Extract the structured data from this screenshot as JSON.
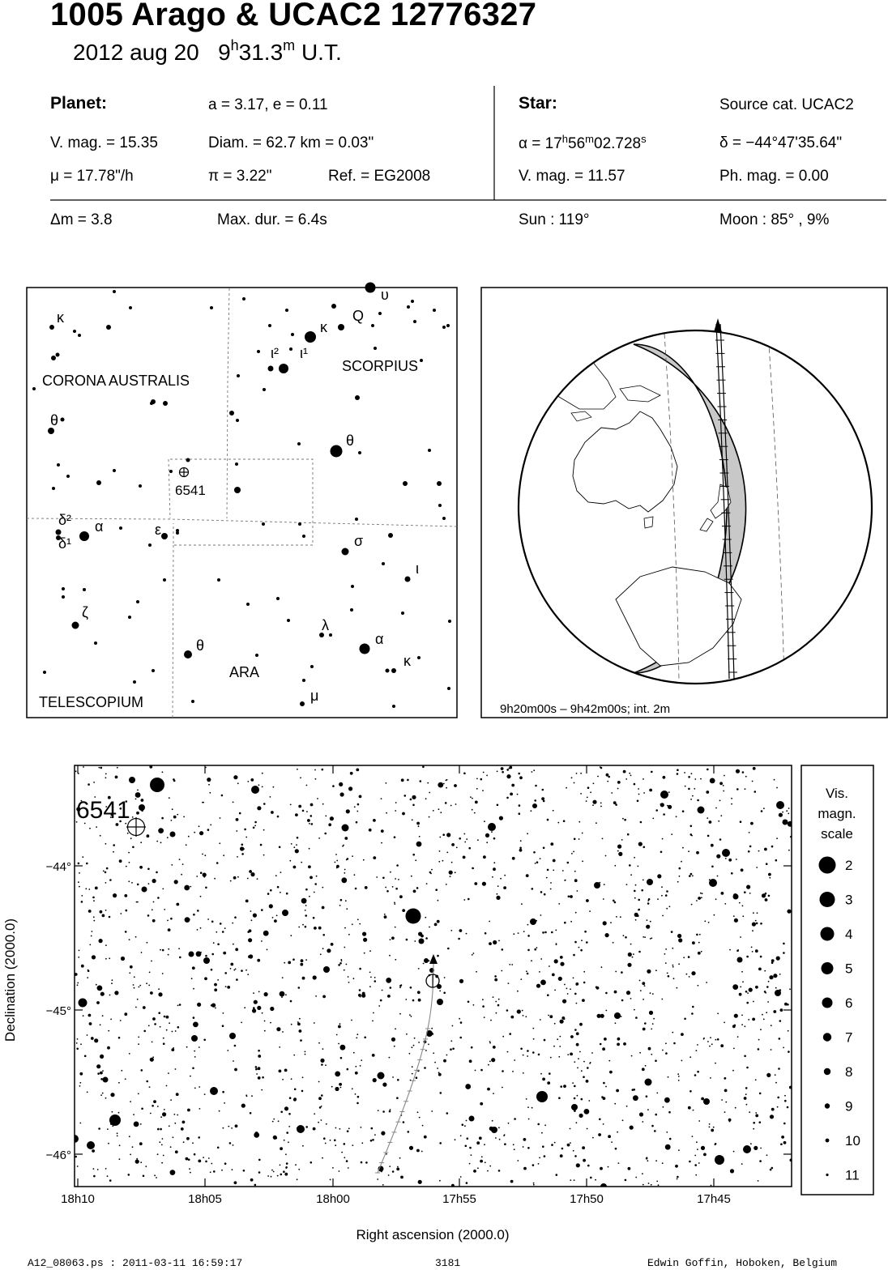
{
  "title": "1005 Arago  &  UCAC2 12776327",
  "subtitle": {
    "date": "2012 aug 20",
    "hour": "9",
    "hour_unit": "h",
    "minute": "31.3",
    "minute_unit": "m",
    "scale": "U.T."
  },
  "planet": {
    "header": "Planet:",
    "orbit": "a = 3.17, e = 0.11",
    "vmag": "V. mag. = 15.35",
    "diam": "Diam. = 62.7 km = 0.03\"",
    "mu": "μ =  17.78\"/h",
    "pi": "π =  3.22\"",
    "ref": "Ref. = EG2008"
  },
  "star": {
    "header": "Star:",
    "source": "Source cat.  UCAC2",
    "ra_prefix": "α = 17",
    "ra_h": "h",
    "ra_mid": "56",
    "ra_m": "m",
    "ra_sec": "02.728",
    "ra_s": "s",
    "dec": "δ = −44°47'35.64\"",
    "vmag": "V. mag. = 11.57",
    "phmag": "Ph. mag. =  0.00"
  },
  "event": {
    "dm": "Δm = 3.8",
    "maxdur": "Max. dur. = 6.4s",
    "sun": "Sun : 119°",
    "moon": "Moon :  85° ,  9%"
  },
  "finder": {
    "constellations": [
      "CORONA AUSTRALIS",
      "SCORPIUS",
      "ARA",
      "TELESCOPIUM"
    ],
    "target_label": "6541",
    "greek": [
      {
        "t": "κ",
        "x": 70,
        "y": 398
      },
      {
        "t": "κ",
        "x": 395,
        "y": 410
      },
      {
        "t": "Q",
        "x": 435,
        "y": 396
      },
      {
        "t": "υ",
        "x": 470,
        "y": 370
      },
      {
        "t": "ι²",
        "x": 334,
        "y": 442
      },
      {
        "t": "ι¹",
        "x": 370,
        "y": 442
      },
      {
        "t": "θ",
        "x": 62,
        "y": 525
      },
      {
        "t": "θ",
        "x": 427,
        "y": 550
      },
      {
        "t": "δ²",
        "x": 72,
        "y": 648
      },
      {
        "t": "δ¹",
        "x": 72,
        "y": 677
      },
      {
        "t": "α",
        "x": 117,
        "y": 656
      },
      {
        "t": "ε",
        "x": 191,
        "y": 660
      },
      {
        "t": "σ",
        "x": 437,
        "y": 674
      },
      {
        "t": "ι",
        "x": 513,
        "y": 708
      },
      {
        "t": "ζ",
        "x": 101,
        "y": 762
      },
      {
        "t": "λ",
        "x": 397,
        "y": 778
      },
      {
        "t": "α",
        "x": 463,
        "y": 795
      },
      {
        "t": "θ",
        "x": 242,
        "y": 803
      },
      {
        "t": "κ",
        "x": 498,
        "y": 822
      },
      {
        "t": "μ",
        "x": 383,
        "y": 865
      }
    ]
  },
  "globe": {
    "interval": "9h20m00s –  9h42m00s; int.  2m"
  },
  "starchart": {
    "target_label": "6541",
    "y_ticks": [
      "−44°",
      "−45°",
      "−46°"
    ],
    "x_ticks": [
      "18h10",
      "18h05",
      "18h00",
      "17h55",
      "17h50",
      "17h45"
    ],
    "xlabel": "Right ascension (2000.0)",
    "ylabel": "Declination (2000.0)"
  },
  "legend": {
    "title_lines": [
      "Vis.",
      "magn.",
      "scale"
    ],
    "mags": [
      "2",
      "3",
      "4",
      "5",
      "6",
      "7",
      "8",
      "9",
      "10",
      "11"
    ]
  },
  "footer": {
    "left": "A12_08063.ps : 2011-03-11 16:59:17",
    "mid": "3181",
    "right": "Edwin Goffin, Hoboken, Belgium"
  }
}
